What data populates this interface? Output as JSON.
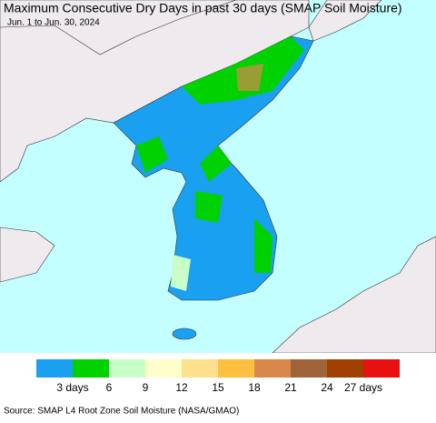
{
  "title": "Maximum Consecutive Dry Days in past 30 days (SMAP Soil Moisture)",
  "subtitle": "Jun. 1 to Jun. 30, 2024",
  "legend": {
    "colors": [
      "#1aa0f0",
      "#00d200",
      "#c8ffc8",
      "#ffffcc",
      "#ffe08c",
      "#ffc040",
      "#d8884a",
      "#a0643a",
      "#a04000",
      "#e81010"
    ],
    "labels": [
      "3 days",
      "6",
      "9",
      "12",
      "15",
      "18",
      "21",
      "24",
      "27 days"
    ]
  },
  "source": "Source: SMAP L4 Root Zone Soil Moisture (NASA/GMAO)"
}
